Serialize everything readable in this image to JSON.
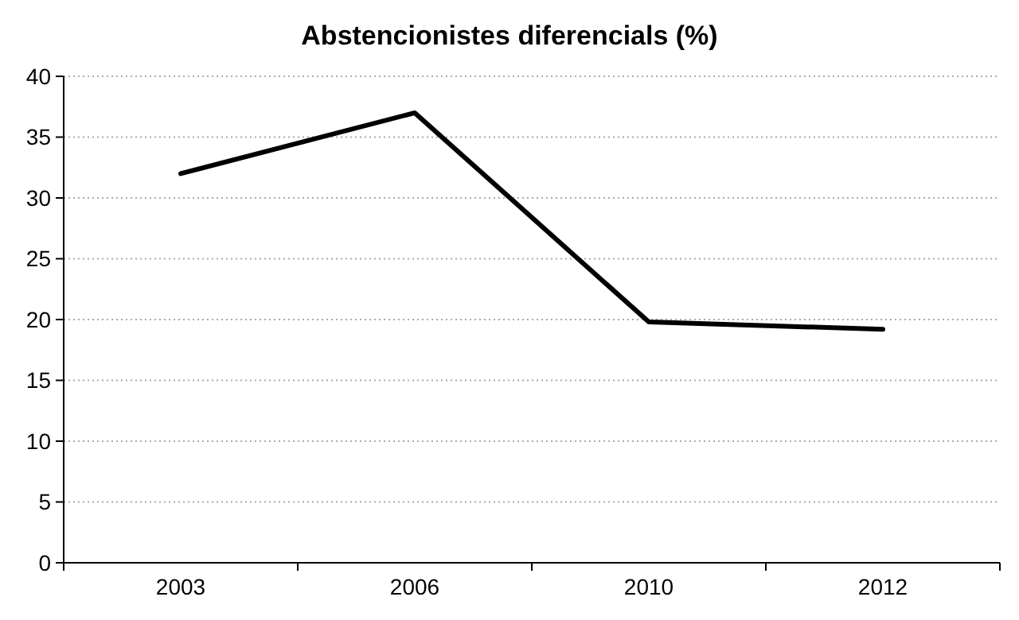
{
  "chart_data": {
    "type": "line",
    "title": "Abstencionistes diferencials (%)",
    "categories": [
      "2003",
      "2006",
      "2010",
      "2012"
    ],
    "series": [
      {
        "color": "#000000",
        "values": [
          32,
          37,
          19.8,
          19.2
        ]
      }
    ],
    "ylim": [
      0,
      40
    ],
    "yticks": [
      0,
      5,
      10,
      15,
      20,
      25,
      30,
      35,
      40
    ],
    "grid": "y",
    "marker": "none",
    "line_style": "solid"
  }
}
